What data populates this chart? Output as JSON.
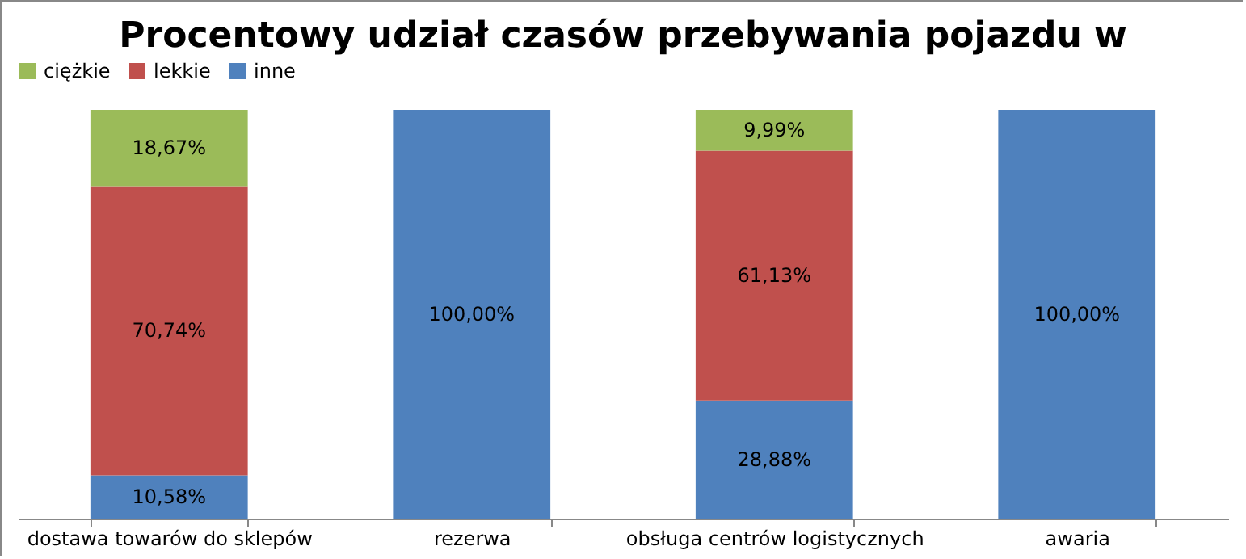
{
  "chart_data": {
    "type": "bar",
    "stacked": true,
    "title": "Procentowy udział czasów przebywania pojazdu w",
    "categories": [
      "dostawa towarów do sklepów",
      "rezerwa",
      "obsługa centrów logistycznych",
      "awaria"
    ],
    "series": [
      {
        "name": "inne",
        "color": "#4f81bd",
        "values": [
          10.58,
          100,
          28.88,
          100
        ],
        "value_labels": [
          "10,58%",
          "100,00%",
          "28,88%",
          "100,00%"
        ]
      },
      {
        "name": "lekkie",
        "color": "#c0504d",
        "values": [
          70.74,
          null,
          61.13,
          null
        ],
        "value_labels": [
          "70,74%",
          null,
          "61,13%",
          null
        ]
      },
      {
        "name": "ciężkie",
        "color": "#9bbb59",
        "values": [
          18.67,
          null,
          9.99,
          null
        ],
        "value_labels": [
          "18,67%",
          null,
          "9,99%",
          null
        ]
      }
    ],
    "legend": "top",
    "grid": false
  }
}
